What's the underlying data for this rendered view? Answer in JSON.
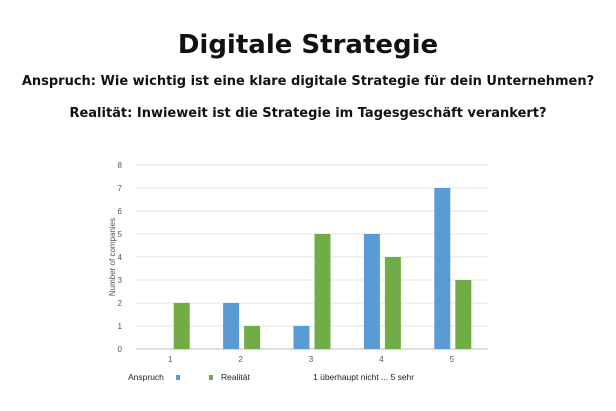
{
  "header": {
    "title": "Digitale Strategie",
    "subtitle_1": "Anspruch: Wie wichtig ist eine klare digitale Strategie für dein Unternehmen?",
    "subtitle_2": "Realität: Inwieweit ist die Strategie im Tagesgeschäft verankert?"
  },
  "chart_data": {
    "type": "bar",
    "categories": [
      "1",
      "2",
      "3",
      "4",
      "5"
    ],
    "series": [
      {
        "name": "Anspruch",
        "values": [
          0,
          2,
          1,
          5,
          7
        ],
        "color": "#5b9bd5"
      },
      {
        "name": "Realität",
        "values": [
          2,
          1,
          5,
          4,
          3
        ],
        "color": "#70ad47"
      }
    ],
    "ylabel": "Number of companies",
    "xlabel": "",
    "ylim": [
      0,
      8
    ],
    "yticks": [
      0,
      1,
      2,
      3,
      4,
      5,
      6,
      7,
      8
    ],
    "grid": true,
    "legend_position": "bottom",
    "legend_note": "1 überhaupt nicht ... 5 sehr"
  }
}
